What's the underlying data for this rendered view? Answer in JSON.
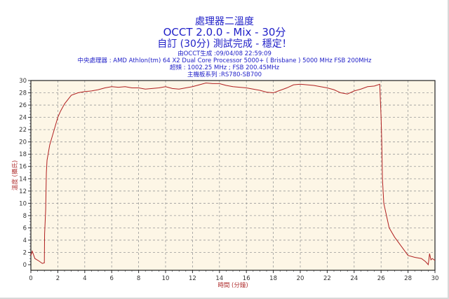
{
  "titles": {
    "line1": "處理器二溫度",
    "line2": "OCCT 2.0.0 - Mix - 30分",
    "line3": "自訂 (30分) 測試完成 - 穩定！"
  },
  "info": {
    "generated": "由OCCT生成 :09/04/08 22:59:09",
    "cpu": "中央處理器 : AMD Athlon(tm) 64 X2 Dual Core Processor 5000+ ( Brisbane ) 5000 MHz FSB 200MHz",
    "clock": "超頻 : 1002.25 MHz ; FSB 200.45MHz",
    "motherboard": "主機板系列 :RS780-SB700"
  },
  "chart_data": {
    "type": "line",
    "title": "處理器二溫度",
    "xlabel": "時間 (分鐘)",
    "ylabel": "溫度 (攝氏)",
    "xlim": [
      0,
      30
    ],
    "ylim": [
      0,
      30
    ],
    "xticks": [
      0,
      2,
      4,
      6,
      8,
      10,
      12,
      14,
      16,
      18,
      20,
      22,
      24,
      26,
      28,
      30
    ],
    "yticks": [
      0,
      2,
      4,
      6,
      8,
      10,
      12,
      14,
      16,
      18,
      20,
      22,
      24,
      26,
      28,
      30
    ],
    "grid": true,
    "colors": {
      "line": "#b02020",
      "plot_bg": "#fdf6e6",
      "grid": "#999999"
    },
    "series": [
      {
        "name": "處理器二溫度",
        "x": [
          0,
          0.1,
          0.3,
          0.6,
          0.85,
          1.0,
          1.02,
          1.1,
          1.15,
          1.2,
          1.4,
          1.6,
          1.8,
          2.0,
          2.2,
          2.5,
          3.0,
          3.5,
          4,
          4.5,
          5,
          5.5,
          6,
          6.5,
          7,
          7.5,
          8,
          8.5,
          9,
          9.5,
          10,
          10.5,
          11,
          11.5,
          12,
          12.5,
          13,
          13.5,
          14,
          14.5,
          15,
          15.5,
          16,
          16.5,
          17,
          17.5,
          18,
          18.5,
          19,
          19.5,
          20,
          20.5,
          21,
          21.5,
          22,
          22.5,
          23,
          23.5,
          24,
          24.5,
          25,
          25.5,
          25.9,
          26.0,
          26.05,
          26.1,
          26.2,
          26.4,
          26.6,
          27,
          27.5,
          28,
          28.5,
          29,
          29.3,
          29.5,
          29.6,
          29.7,
          29.8,
          30
        ],
        "y": [
          1.5,
          2.2,
          1.0,
          0.6,
          0.2,
          0.3,
          5,
          9,
          15,
          17,
          19.5,
          21,
          22.5,
          24,
          25,
          26.2,
          27.6,
          28,
          28.2,
          28.3,
          28.5,
          28.8,
          29,
          28.9,
          29,
          28.8,
          28.8,
          28.6,
          28.7,
          28.8,
          29,
          28.7,
          28.6,
          28.8,
          29,
          29.3,
          29.6,
          29.5,
          29.5,
          29.2,
          29,
          28.9,
          28.8,
          28.6,
          28.4,
          28.1,
          28,
          28.4,
          28.8,
          29.3,
          29.4,
          29.3,
          29.2,
          29,
          28.8,
          28.5,
          28,
          27.8,
          28.3,
          28.6,
          29,
          29.1,
          29.4,
          24,
          20,
          14,
          10,
          8,
          6,
          4.5,
          3,
          1.5,
          1.2,
          1.0,
          0.5,
          0,
          1.8,
          0.8,
          1.0,
          0.7
        ]
      }
    ]
  }
}
